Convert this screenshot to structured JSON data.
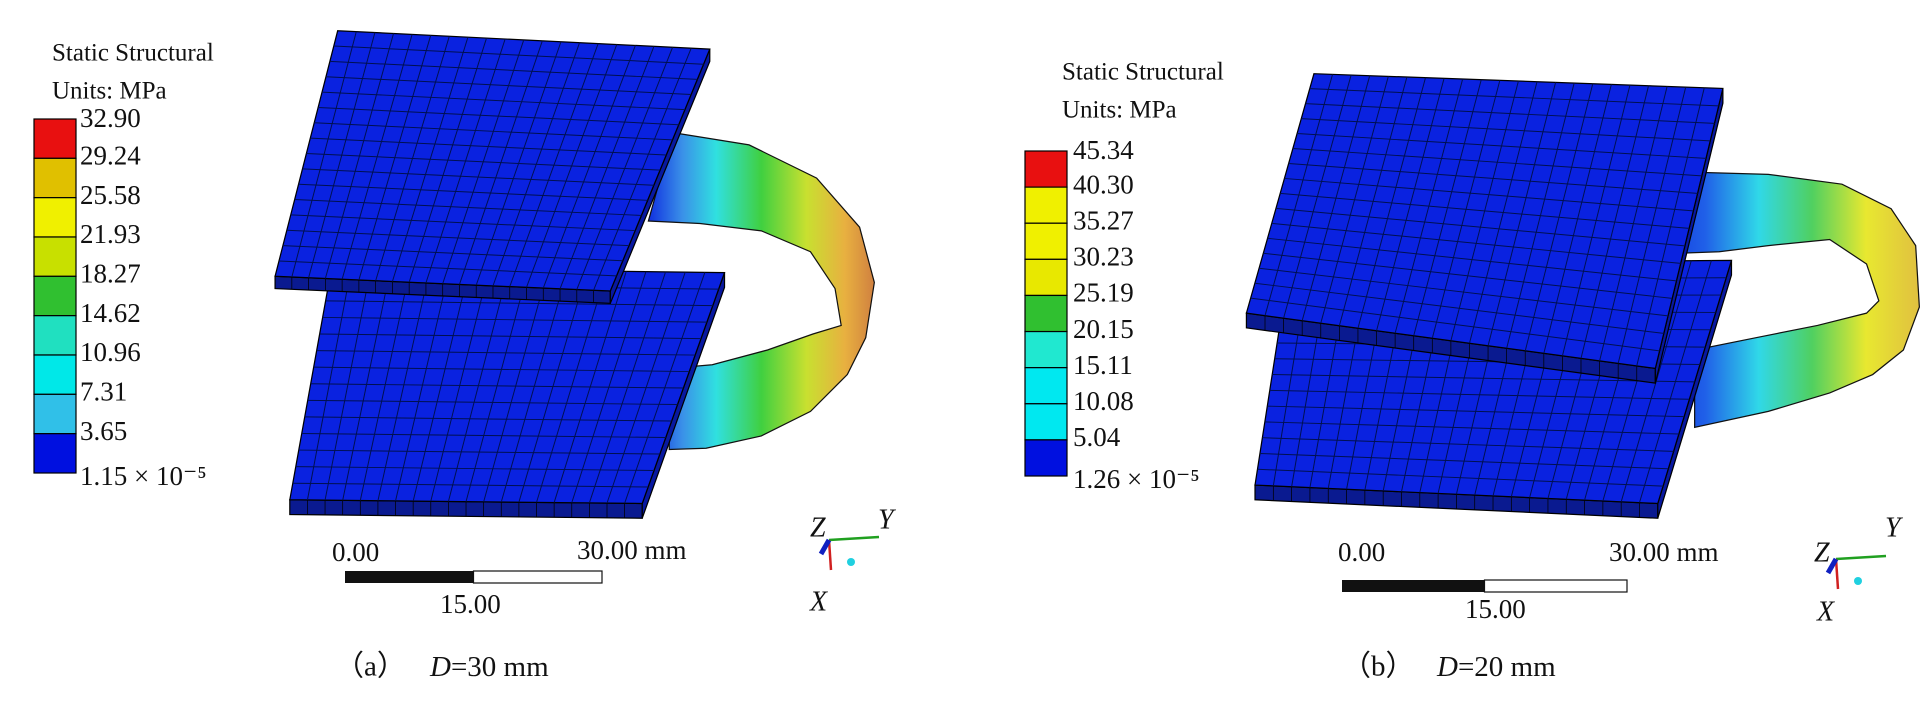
{
  "panels": [
    {
      "legend": {
        "title": "Static Structural",
        "units": "Units: MPa",
        "labels": [
          "32.90",
          "29.24",
          "25.58",
          "21.93",
          "18.27",
          "14.62",
          "10.96",
          "7.31",
          "3.65",
          "1.15 × 10⁻⁵"
        ]
      },
      "scale_bar": {
        "start": "0.00",
        "end": "30.00 mm",
        "mid": "15.00"
      },
      "axes": {
        "z": "Z",
        "y": "Y",
        "x": "X"
      },
      "caption": {
        "tag": "（a）",
        "variable": "D",
        "value": "=30 mm"
      }
    },
    {
      "legend": {
        "title": "Static Structural",
        "units": "Units: MPa",
        "labels": [
          "45.34",
          "40.30",
          "35.27",
          "30.23",
          "25.19",
          "20.15",
          "15.11",
          "10.08",
          "5.04",
          "1.26 × 10⁻⁵"
        ]
      },
      "scale_bar": {
        "start": "0.00",
        "end": "30.00 mm",
        "mid": "15.00"
      },
      "axes": {
        "z": "Z",
        "y": "Y",
        "x": "X"
      },
      "caption": {
        "tag": "（b）",
        "variable": "D",
        "value": "=20 mm"
      }
    }
  ]
}
